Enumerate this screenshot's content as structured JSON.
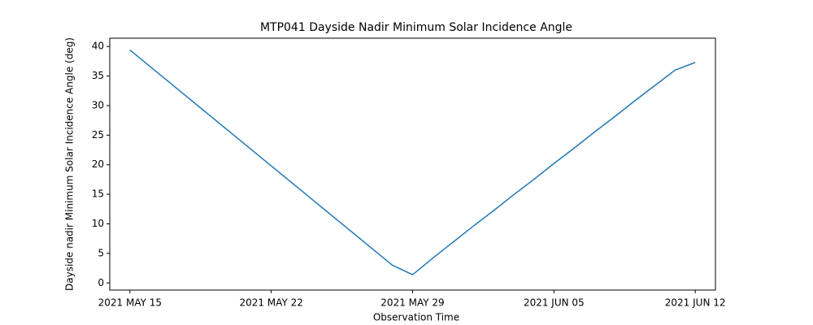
{
  "chart_data": {
    "type": "line",
    "title": "MTP041 Dayside Nadir Minimum Solar Incidence Angle",
    "xlabel": "Observation Time",
    "ylabel": "Dayside nadir Minimum Solar Incidence Angle (deg)",
    "color": "#1f77b4",
    "x": [
      "2021-05-15",
      "2021-05-16",
      "2021-05-17",
      "2021-05-18",
      "2021-05-19",
      "2021-05-20",
      "2021-05-21",
      "2021-05-22",
      "2021-05-23",
      "2021-05-24",
      "2021-05-25",
      "2021-05-26",
      "2021-05-27",
      "2021-05-28",
      "2021-05-29",
      "2021-05-30",
      "2021-05-31",
      "2021-06-01",
      "2021-06-02",
      "2021-06-03",
      "2021-06-04",
      "2021-06-05",
      "2021-06-06",
      "2021-06-07",
      "2021-06-08",
      "2021-06-09",
      "2021-06-10",
      "2021-06-11",
      "2021-06-12"
    ],
    "values": [
      39.4,
      36.6,
      33.8,
      31.0,
      28.2,
      25.4,
      22.6,
      19.8,
      17.0,
      14.2,
      11.4,
      8.6,
      5.8,
      3.0,
      1.4,
      4.2,
      6.9,
      9.6,
      12.2,
      14.9,
      17.5,
      20.2,
      22.8,
      25.5,
      28.1,
      30.8,
      33.4,
      36.0,
      37.3
    ],
    "xlim": [
      "2021-05-14",
      "2021-06-13"
    ],
    "xticks": [
      {
        "value": "2021-05-15",
        "label": "2021 MAY 15"
      },
      {
        "value": "2021-05-22",
        "label": "2021 MAY 22"
      },
      {
        "value": "2021-05-29",
        "label": "2021 MAY 29"
      },
      {
        "value": "2021-06-05",
        "label": "2021 JUN 05"
      },
      {
        "value": "2021-06-12",
        "label": "2021 JUN 12"
      }
    ],
    "ylim": [
      -1.2,
      41.4
    ],
    "yticks": [
      0,
      5,
      10,
      15,
      20,
      25,
      30,
      35,
      40
    ],
    "grid": false
  }
}
